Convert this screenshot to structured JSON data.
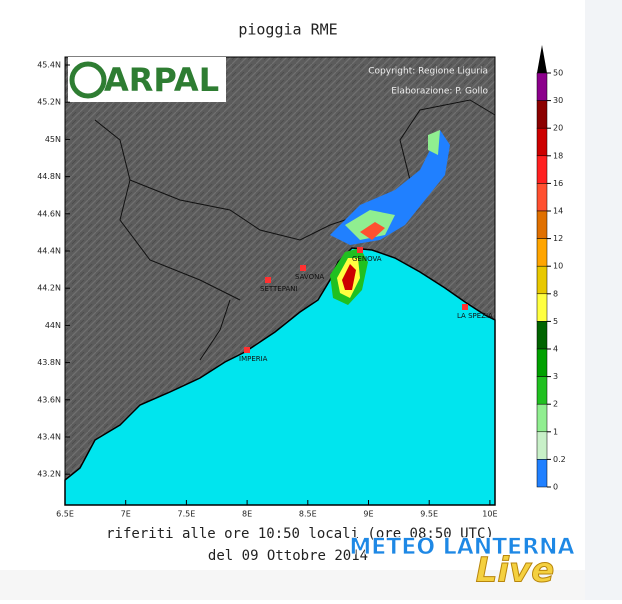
{
  "title": "pioggia RME",
  "logo": "ARPAL",
  "credits": [
    "Copyright: Regione Liguria",
    "Elaborazione: P. Gollo"
  ],
  "footer": [
    "riferiti alle ore 10:50 locali (ore 08:50 UTC)",
    "del 09 Ottobre 2014"
  ],
  "x_ticks": [
    "6.5E",
    "7E",
    "7.5E",
    "8E",
    "8.5E",
    "9E",
    "9.5E",
    "10E"
  ],
  "y_ticks": [
    "45.4N",
    "45.2N",
    "45N",
    "44.8N",
    "44.6N",
    "44.4N",
    "44.2N",
    "44N",
    "43.8N",
    "43.6N",
    "43.4N",
    "43.2N"
  ],
  "cities": [
    {
      "label": "IMPERIA"
    },
    {
      "label": "SETTEPANI"
    },
    {
      "label": "SAVONA"
    },
    {
      "label": "GENOVA"
    },
    {
      "label": "LA SPEZIA"
    }
  ],
  "colorbar": {
    "labels": [
      "50",
      "30",
      "20",
      "18",
      "16",
      "14",
      "12",
      "10",
      "8",
      "5",
      "4",
      "3",
      "2",
      "1",
      "0.2",
      "0"
    ],
    "colors": [
      "#8b008b",
      "#8b0000",
      "#cc0000",
      "#ff2020",
      "#ff5030",
      "#e07000",
      "#ffa500",
      "#e8c800",
      "#ffff40",
      "#006400",
      "#00a000",
      "#20c020",
      "#90ee90",
      "#c8f0c8",
      "#2080ff"
    ],
    "top_color": "#000000"
  },
  "watermark": [
    "METEO LANTERNA",
    "Live"
  ]
}
